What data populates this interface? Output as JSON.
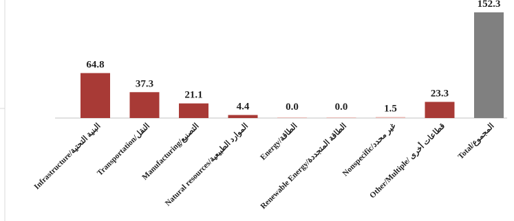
{
  "chart_data": {
    "type": "bar",
    "categories": [
      "Infrastructure/البنية التحتية",
      "Transportation/النقل",
      "Manufacturing/التصنيع",
      "Natural resources/الموارد الطبيعية",
      "Energy/الطاقة",
      "Renewable Energy/الطاقة المتجددة",
      "Nonspecific/غير محدد",
      "Other/Multiple/ قطاعات أخرى",
      "Total/المجموع"
    ],
    "values": [
      64.8,
      37.3,
      21.1,
      4.4,
      0.0,
      0.0,
      1.5,
      23.3,
      152.3
    ],
    "value_labels": [
      "64.8",
      "37.3",
      "21.1",
      "4.4",
      "0.0",
      "0.0",
      "1.5",
      "23.3",
      "152.3"
    ],
    "ylim": [
      0,
      152.3
    ],
    "grid": false,
    "colors": {
      "bar": "#A83A36",
      "bar_outline": "#E8B6B2",
      "total_bar": "#808080",
      "axis": "#C0C0C0",
      "text": "#222222"
    }
  }
}
